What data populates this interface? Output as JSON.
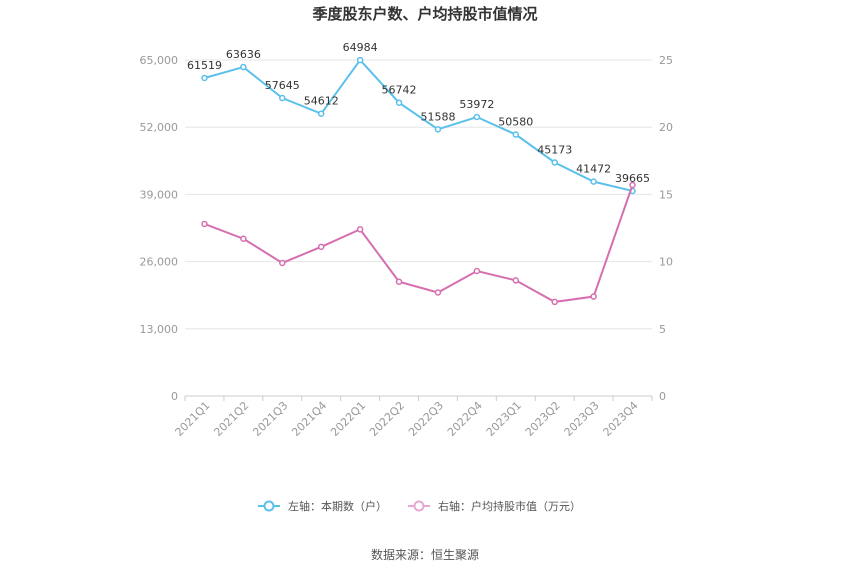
{
  "chart_data": {
    "type": "line",
    "title": "季度股东户数、户均持股市值情况",
    "categories": [
      "2021Q1",
      "2021Q2",
      "2021Q3",
      "2021Q4",
      "2022Q1",
      "2022Q2",
      "2022Q3",
      "2022Q4",
      "2023Q1",
      "2023Q2",
      "2023Q3",
      "2023Q4"
    ],
    "left_axis": {
      "ticks": [
        "0",
        "13,000",
        "26,000",
        "39,000",
        "52,000",
        "65,000"
      ],
      "ylim": [
        0,
        65000
      ]
    },
    "right_axis": {
      "ticks": [
        "0",
        "5",
        "10",
        "15",
        "20",
        "25"
      ],
      "ylim": [
        0,
        25
      ]
    },
    "series": [
      {
        "name": "左轴：本期数（户）",
        "axis": "left",
        "color": "#5bc0eb",
        "values": [
          61519,
          63636,
          57645,
          54612,
          64984,
          56742,
          51588,
          53972,
          50580,
          45173,
          41472,
          39665
        ],
        "labels": [
          "61519",
          "63636",
          "57645",
          "54612",
          "64984",
          "56742",
          "51588",
          "53972",
          "50580",
          "45173",
          "41472",
          "39665"
        ]
      },
      {
        "name": "右轴：户均持股市值（万元）",
        "axis": "right",
        "color": "#d66fb0",
        "values": [
          12.8,
          11.7,
          9.9,
          11.1,
          12.4,
          8.5,
          7.7,
          9.3,
          8.6,
          7.0,
          7.4,
          15.7
        ]
      }
    ],
    "legend_position": "bottom",
    "grid": true
  },
  "footer": {
    "source": "数据来源：恒生聚源"
  }
}
